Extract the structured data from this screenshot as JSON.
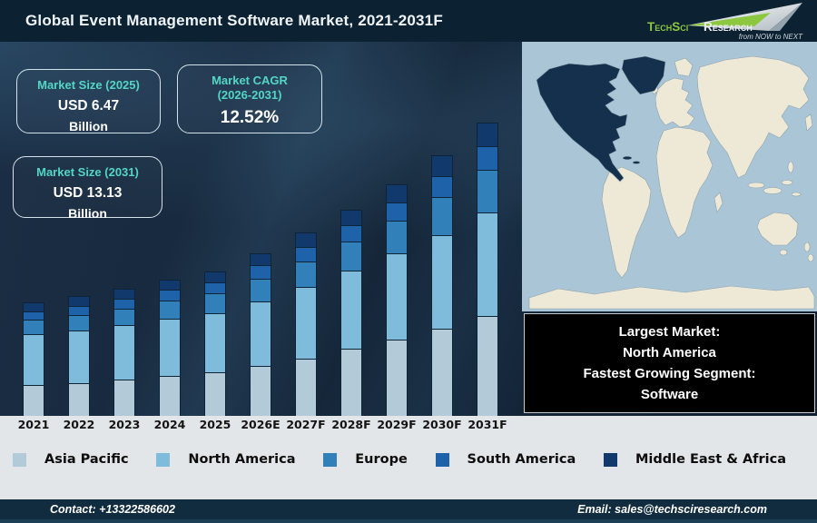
{
  "header": {
    "title": "Global Event Management Software Market, 2021-2031F",
    "logo": {
      "brand_primary": "TechSci",
      "brand_secondary": "Research",
      "tagline": "from NOW to NEXT",
      "brand_green": "#8dc63f"
    }
  },
  "stats": [
    {
      "label": "Market Size (2025)",
      "value": "USD 6.47",
      "unit": "Billion"
    },
    {
      "label": "Market CAGR",
      "sublabel": "(2026-2031)",
      "value": "12.52%"
    },
    {
      "label": "Market Size (2031)",
      "value": "USD 13.13",
      "unit": "Billion"
    }
  ],
  "chart_data": {
    "type": "bar",
    "stacked": true,
    "title": "Global Event Management Software Market, 2021-2031F",
    "unit": "USD Billion",
    "grid": false,
    "legend_position": "bottom",
    "ylim": [
      0,
      14
    ],
    "categories": [
      "2021",
      "2022",
      "2023",
      "2024",
      "2025",
      "2026E",
      "2027F",
      "2028F",
      "2029F",
      "2030F",
      "2031F"
    ],
    "totals": [
      5.09,
      5.35,
      5.69,
      6.1,
      6.47,
      7.28,
      8.19,
      9.22,
      10.37,
      11.67,
      13.13
    ],
    "series": [
      {
        "name": "Asia Pacific",
        "color": "#b3cbd8",
        "values": [
          1.37,
          1.47,
          1.62,
          1.8,
          1.94,
          2.22,
          2.58,
          3.0,
          3.42,
          3.91,
          4.46
        ]
      },
      {
        "name": "North America",
        "color": "#7fbcdc",
        "values": [
          2.29,
          2.35,
          2.45,
          2.56,
          2.65,
          2.91,
          3.19,
          3.5,
          3.84,
          4.2,
          4.66
        ]
      },
      {
        "name": "Europe",
        "color": "#3180b9",
        "values": [
          0.64,
          0.7,
          0.74,
          0.81,
          0.89,
          1.02,
          1.15,
          1.29,
          1.47,
          1.67,
          1.89
        ]
      },
      {
        "name": "South America",
        "color": "#1e63a9",
        "values": [
          0.38,
          0.4,
          0.44,
          0.48,
          0.5,
          0.58,
          0.65,
          0.74,
          0.83,
          0.94,
          1.08
        ]
      },
      {
        "name": "Middle East & Africa",
        "color": "#11396b",
        "values": [
          0.41,
          0.43,
          0.44,
          0.45,
          0.49,
          0.55,
          0.62,
          0.69,
          0.81,
          0.95,
          1.04
        ]
      }
    ],
    "annotations": {
      "market_size_2025": "USD 6.47 Billion",
      "market_size_2031": "USD 13.13 Billion",
      "cagr_2026_2031": "12.52%"
    }
  },
  "map": {
    "highlight_region": "North America",
    "ocean_color": "#a9c5d6",
    "land_color": "#ede9d6",
    "highlight_color": "#14304d"
  },
  "note": {
    "lines": [
      "Largest Market:",
      "North America",
      "Fastest Growing Segment:",
      "Software"
    ]
  },
  "footer": {
    "contact": "Contact: +13322586602",
    "email": "Email: sales@techsciresearch.com"
  }
}
